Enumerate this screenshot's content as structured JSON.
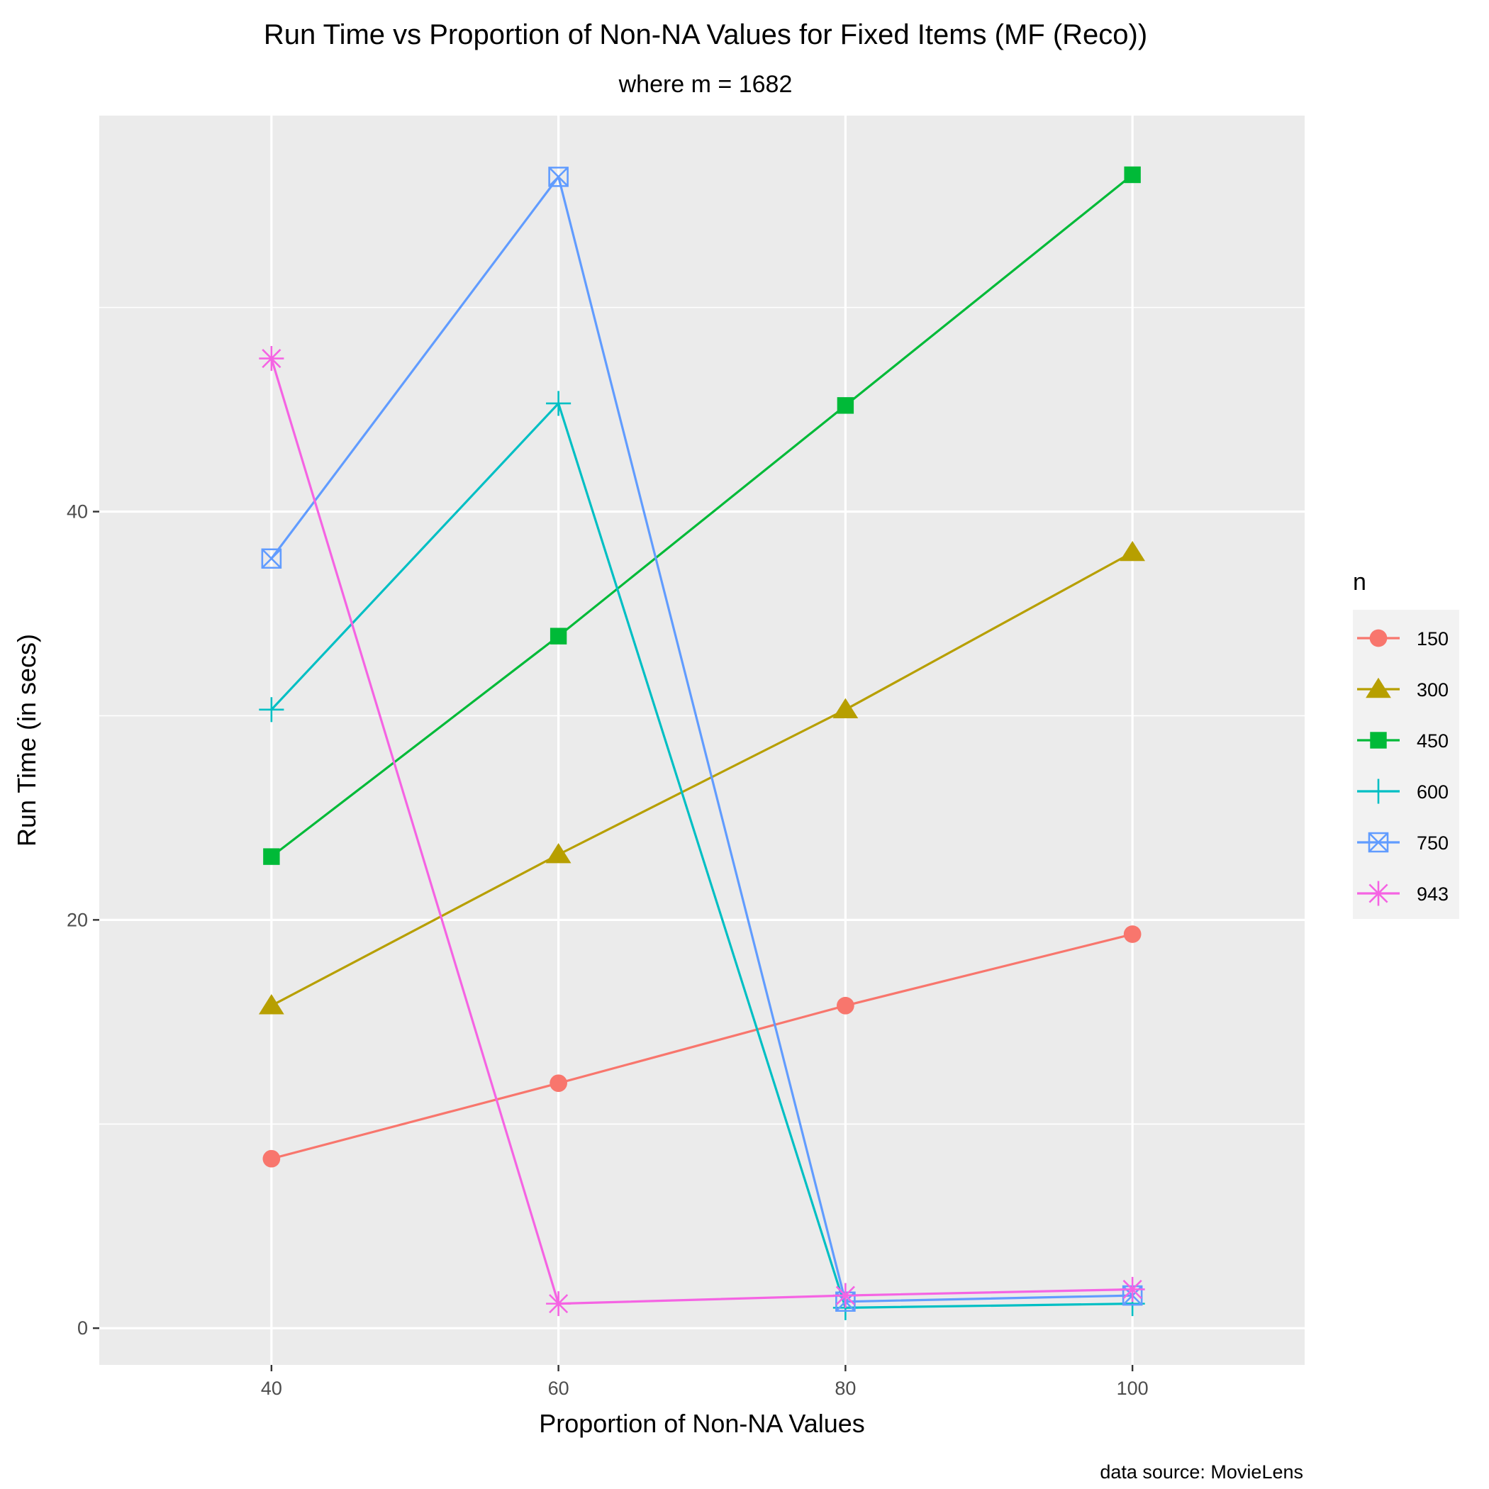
{
  "chart_data": {
    "type": "line",
    "title": "Run Time vs Proportion of Non-NA Values for Fixed Items (MF (Reco))",
    "subtitle": "where m = 1682",
    "xlabel": "Proportion of Non-NA Values",
    "ylabel": "Run Time (in secs)",
    "caption": "data source: MovieLens",
    "x": [
      40,
      60,
      80,
      100
    ],
    "xlim": [
      28,
      112
    ],
    "ylim": [
      -1.8,
      59.4
    ],
    "x_ticks": [
      40,
      60,
      80,
      100
    ],
    "y_ticks": [
      0,
      20,
      40
    ],
    "y_minor_ticks": [
      10,
      30,
      50
    ],
    "grid": true,
    "legend": {
      "title": "n",
      "position": "right"
    },
    "series": [
      {
        "name": "150",
        "color": "#F8766D",
        "shape": "circle",
        "values": [
          8.3,
          12.0,
          15.8,
          19.3
        ]
      },
      {
        "name": "300",
        "color": "#B79F00",
        "shape": "triangle",
        "values": [
          15.8,
          23.2,
          30.3,
          38.0
        ]
      },
      {
        "name": "450",
        "color": "#00BA38",
        "shape": "square",
        "values": [
          23.1,
          33.9,
          45.2,
          56.5
        ]
      },
      {
        "name": "600",
        "color": "#00BFC4",
        "shape": "plus",
        "values": [
          30.3,
          45.3,
          1.0,
          1.2
        ]
      },
      {
        "name": "750",
        "color": "#619CFF",
        "shape": "boxx",
        "values": [
          37.7,
          56.4,
          1.3,
          1.6
        ]
      },
      {
        "name": "943",
        "color": "#F564E3",
        "shape": "star",
        "values": [
          47.5,
          1.2,
          1.6,
          1.9
        ]
      }
    ]
  }
}
